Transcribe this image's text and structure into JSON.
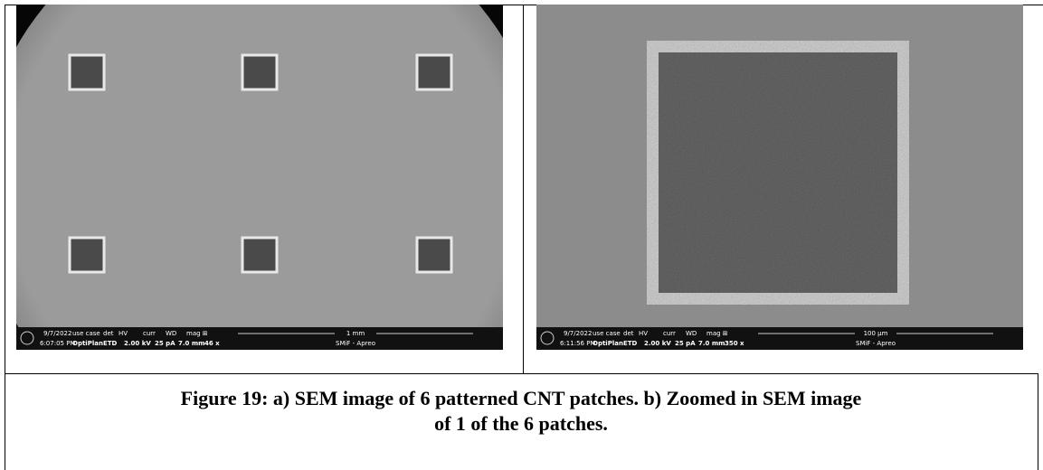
{
  "figure": {
    "panels": [
      {
        "info": {
          "date": "9/7/2022",
          "labels": [
            "use case",
            "det",
            "HV",
            "curr",
            "WD",
            "mag ⊞"
          ],
          "time": "6:07:05 PM",
          "values": [
            "OptiPlan",
            "ETD",
            "2.00 kV",
            "25 pA",
            "7.0 mm",
            "46 x"
          ],
          "scale": "1 mm",
          "instrument": "SMiF - Apreo"
        }
      },
      {
        "info": {
          "date": "9/7/2022",
          "labels": [
            "use case",
            "det",
            "HV",
            "curr",
            "WD",
            "mag ⊞"
          ],
          "time": "6:11:56 PM",
          "values": [
            "OptiPlan",
            "ETD",
            "2.00 kV",
            "25 pA",
            "7.0 mm",
            "350 x"
          ],
          "scale": "100 µm",
          "instrument": "SMiF - Apreo"
        }
      }
    ],
    "caption": {
      "lines": [
        "Figure 19: a) SEM image of 6 patterned CNT patches. b) Zoomed in SEM image",
        "of 1 of the 6 patches."
      ]
    }
  }
}
